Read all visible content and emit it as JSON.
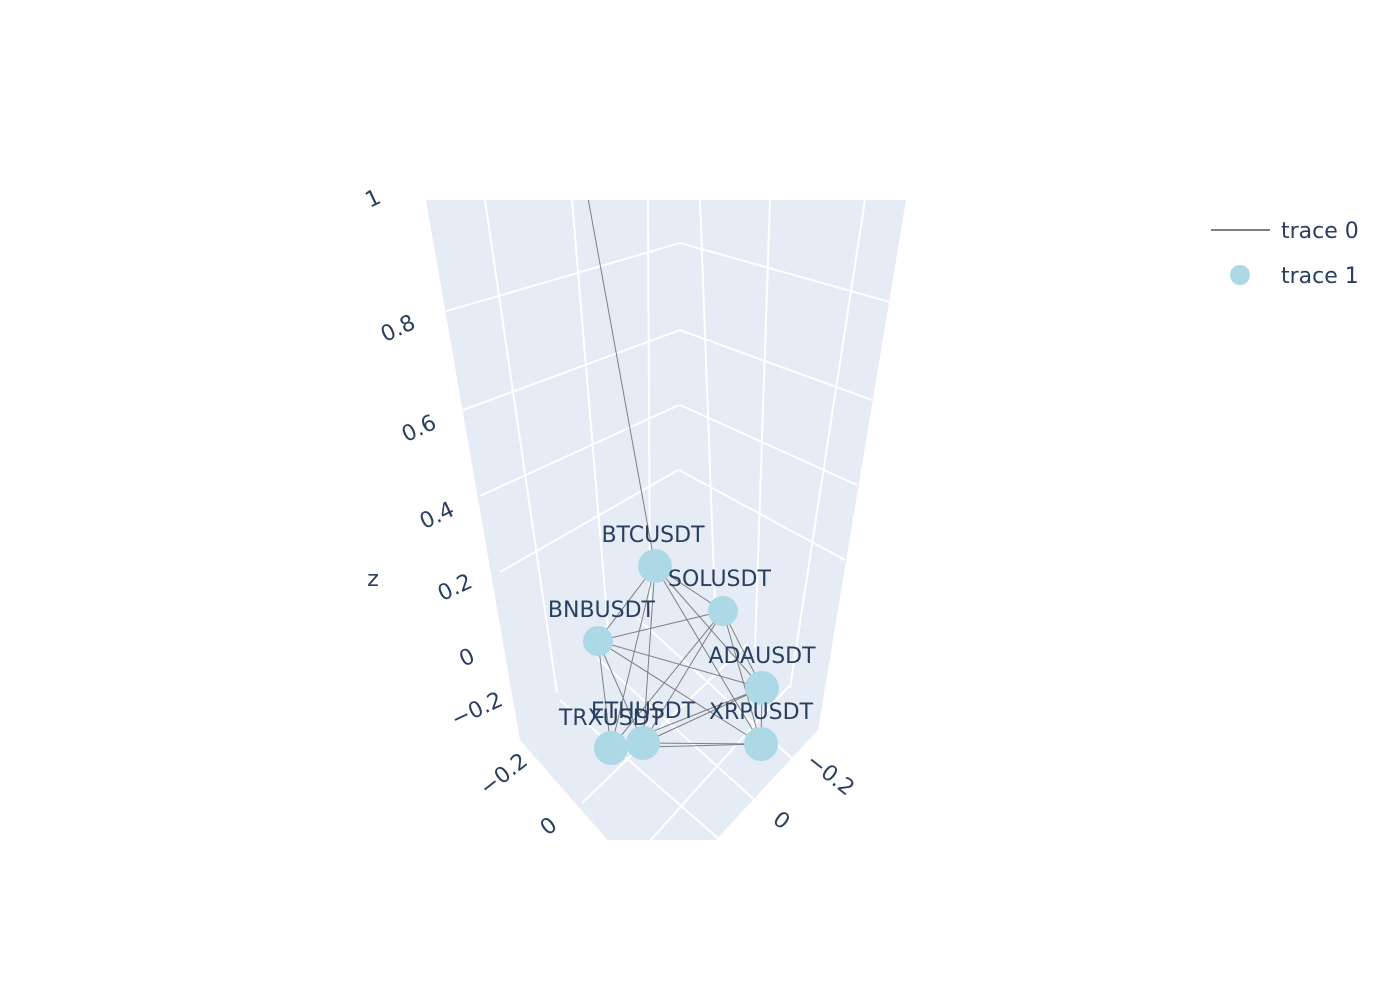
{
  "chart_data": {
    "type": "scatter",
    "dimensions": 3,
    "axes": {
      "x": {
        "ticks": [
          "−0.2",
          "0"
        ]
      },
      "y": {
        "ticks": [
          "−0.2",
          "0"
        ]
      },
      "z": {
        "title": "z",
        "range": [
          -0.3,
          1
        ],
        "ticks": [
          "−0.2",
          "0",
          "0.2",
          "0.4",
          "0.6",
          "0.8",
          "1"
        ]
      }
    },
    "legend": {
      "placement": "top-right",
      "entries": [
        {
          "name": "trace 0",
          "kind": "line",
          "color": "#7f7f7f"
        },
        {
          "name": "trace 1",
          "kind": "marker",
          "color": "#add8e6"
        }
      ]
    },
    "nodes": [
      {
        "label": "BTCUSDT",
        "z": 0.13
      },
      {
        "label": "SOLUSDT",
        "z": 0.04
      },
      {
        "label": "BNBUSDT",
        "z": -0.02
      },
      {
        "label": "ADAUSDT",
        "z": -0.12
      },
      {
        "label": "ETHUSDT",
        "z": -0.24
      },
      {
        "label": "XRPUSDT",
        "z": -0.24
      },
      {
        "label": "TRXUSDT",
        "z": -0.24
      }
    ],
    "edges": [
      [
        "BTCUSDT",
        "SOLUSDT"
      ],
      [
        "BTCUSDT",
        "BNBUSDT"
      ],
      [
        "BTCUSDT",
        "ADAUSDT"
      ],
      [
        "BTCUSDT",
        "ETHUSDT"
      ],
      [
        "BTCUSDT",
        "XRPUSDT"
      ],
      [
        "BTCUSDT",
        "TRXUSDT"
      ],
      [
        "SOLUSDT",
        "BNBUSDT"
      ],
      [
        "SOLUSDT",
        "ADAUSDT"
      ],
      [
        "SOLUSDT",
        "ETHUSDT"
      ],
      [
        "SOLUSDT",
        "XRPUSDT"
      ],
      [
        "SOLUSDT",
        "TRXUSDT"
      ],
      [
        "BNBUSDT",
        "ADAUSDT"
      ],
      [
        "BNBUSDT",
        "ETHUSDT"
      ],
      [
        "BNBUSDT",
        "XRPUSDT"
      ],
      [
        "BNBUSDT",
        "TRXUSDT"
      ],
      [
        "ADAUSDT",
        "ETHUSDT"
      ],
      [
        "ADAUSDT",
        "XRPUSDT"
      ],
      [
        "ADAUSDT",
        "TRXUSDT"
      ],
      [
        "ETHUSDT",
        "XRPUSDT"
      ],
      [
        "ETHUSDT",
        "TRXUSDT"
      ],
      [
        "XRPUSDT",
        "TRXUSDT"
      ]
    ]
  },
  "colors": {
    "pane": "#e5ecf6",
    "grid": "#ffffff",
    "text": "#2a3f5f",
    "edge": "#7f7f7f",
    "node": "#add8e6"
  }
}
